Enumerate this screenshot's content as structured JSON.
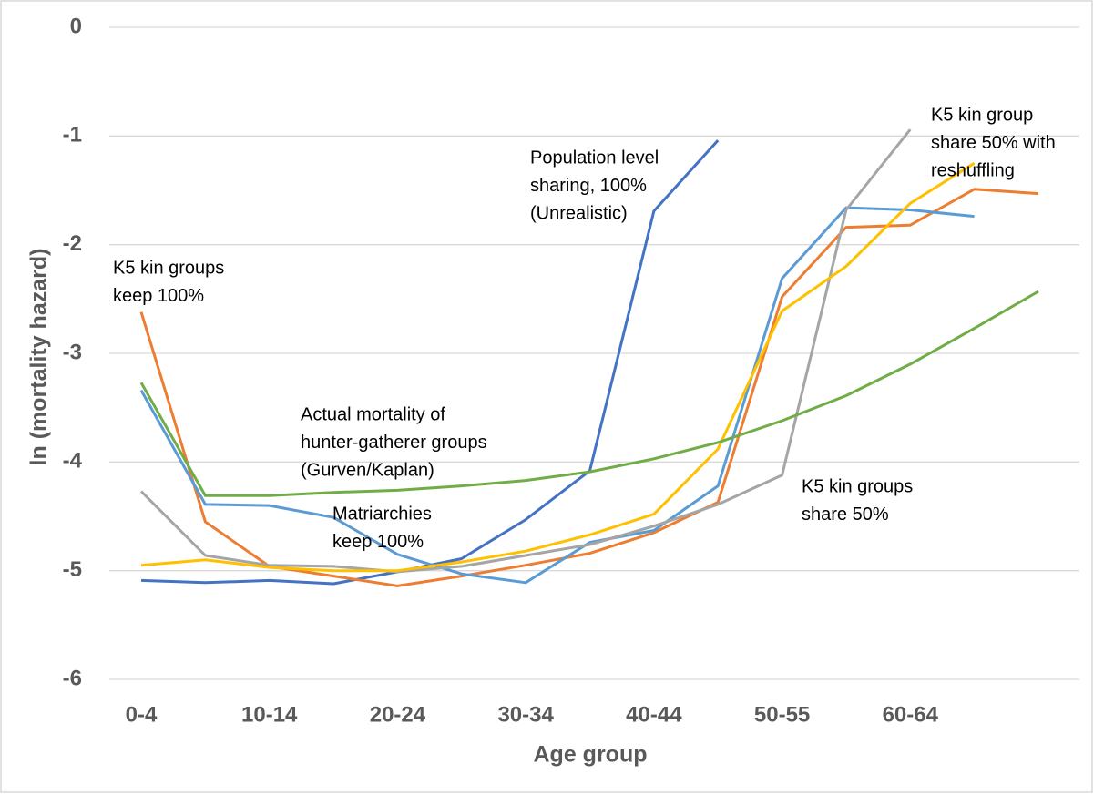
{
  "chart_data": {
    "type": "line",
    "y_label": "ln (mortality hazard)",
    "x_label": "Age group",
    "categories": [
      "0-4",
      null,
      "10-14",
      null,
      "20-24",
      null,
      "30-34",
      null,
      "40-44",
      null,
      "50-55",
      null,
      "60-64",
      null,
      null
    ],
    "ylim": [
      -6,
      0
    ],
    "yticks": [
      0,
      -1,
      -2,
      -3,
      -4,
      -5,
      -6
    ],
    "grid": true,
    "series": [
      {
        "color": "#4472c4",
        "values": [
          -5.09,
          -5.11,
          -5.09,
          -5.12,
          -5.01,
          -4.89,
          -4.53,
          -4.08,
          -1.69,
          -1.04,
          null,
          null,
          null,
          null,
          null
        ]
      },
      {
        "color": "#ed7d31",
        "values": [
          -2.62,
          -4.55,
          -4.96,
          -5.05,
          -5.14,
          -5.05,
          -4.95,
          -4.84,
          -4.65,
          -4.37,
          -2.48,
          -1.84,
          -1.82,
          -1.49,
          -1.53
        ]
      },
      {
        "color": "#5b9bd5",
        "values": [
          -3.34,
          -4.39,
          -4.4,
          -4.51,
          -4.85,
          -5.03,
          -5.11,
          -4.74,
          -4.63,
          -4.22,
          -2.31,
          -1.66,
          -1.68,
          -1.74,
          null
        ]
      },
      {
        "color": "#a5a5a5",
        "values": [
          -4.27,
          -4.86,
          -4.95,
          -4.96,
          -5.01,
          -4.96,
          -4.86,
          -4.76,
          -4.59,
          -4.39,
          -4.12,
          -1.68,
          -0.94,
          null,
          null
        ]
      },
      {
        "color": "#ffc000",
        "values": [
          -4.95,
          -4.9,
          -4.97,
          -5.0,
          -5.0,
          -4.92,
          -4.82,
          -4.67,
          -4.48,
          -3.88,
          -2.61,
          -2.2,
          -1.62,
          -1.25,
          null
        ]
      },
      {
        "color": "#70ad47",
        "values": [
          -3.27,
          -4.31,
          -4.31,
          -4.28,
          -4.26,
          -4.22,
          -4.17,
          -4.09,
          -3.97,
          -3.82,
          -3.62,
          -3.39,
          -3.1,
          -2.77,
          -2.43
        ]
      }
    ],
    "annotations": [
      {
        "lines": [
          "Population level",
          "sharing, 100%",
          "(Unrealistic)"
        ]
      },
      {
        "lines": [
          "K5 kin group",
          "share 50% with",
          "reshuffling"
        ]
      },
      {
        "lines": [
          "K5 kin groups",
          "keep 100%"
        ]
      },
      {
        "lines": [
          "Actual mortality of",
          "hunter-gatherer groups",
          "(Gurven/Kaplan)"
        ]
      },
      {
        "lines": [
          "Matriarchies",
          "keep 100%"
        ]
      },
      {
        "lines": [
          "K5 kin groups",
          "share 50%"
        ]
      }
    ]
  }
}
